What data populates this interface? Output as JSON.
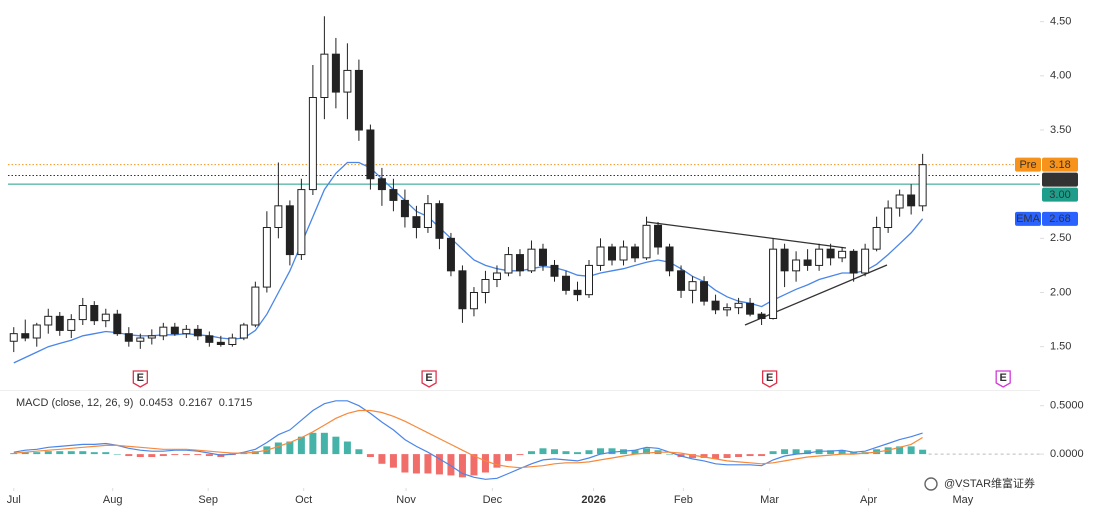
{
  "chart_data": {
    "type": "candlestick",
    "up_color": "#ffffff",
    "down_color": "#222222",
    "outline_color": "#222222",
    "ylim": [
      1.1,
      4.7
    ],
    "yticks": [
      {
        "value": 4.5,
        "label": "4.50"
      },
      {
        "value": 4,
        "label": "4.00"
      },
      {
        "value": 3.5,
        "label": "3.50"
      },
      {
        "value": 2.5,
        "label": "2.50"
      },
      {
        "value": 2,
        "label": "2.00"
      },
      {
        "value": 1.5,
        "label": "1.50"
      }
    ],
    "xlim": [
      0,
      89.7
    ],
    "xticks": [
      {
        "value": 0.5,
        "label": "Jul"
      },
      {
        "value": 9.1,
        "label": "Aug"
      },
      {
        "value": 17.4,
        "label": "Sep"
      },
      {
        "value": 25.7,
        "label": "Oct"
      },
      {
        "value": 34.6,
        "label": "Nov"
      },
      {
        "value": 42.1,
        "label": "Dec"
      },
      {
        "value": 50.9,
        "label": "2026"
      },
      {
        "value": 58.7,
        "label": "Feb"
      },
      {
        "value": 66.2,
        "label": "Mar"
      },
      {
        "value": 74.8,
        "label": "Apr"
      },
      {
        "value": 83.0,
        "label": "May"
      }
    ],
    "grid": false,
    "open": [
      1.55,
      1.62,
      1.58,
      1.7,
      1.78,
      1.65,
      1.75,
      1.88,
      1.74,
      1.8,
      1.62,
      1.55,
      1.58,
      1.6,
      1.68,
      1.62,
      1.66,
      1.6,
      1.54,
      1.52,
      1.58,
      1.7,
      2.05,
      2.6,
      2.8,
      2.35,
      2.95,
      3.8,
      4.2,
      3.85,
      4.05,
      3.5,
      3.05,
      2.95,
      2.85,
      2.7,
      2.6,
      2.82,
      2.5,
      2.2,
      1.85,
      2.0,
      2.12,
      2.18,
      2.35,
      2.2,
      2.4,
      2.25,
      2.15,
      2.02,
      1.98,
      2.25,
      2.42,
      2.3,
      2.42,
      2.32,
      2.62,
      2.42,
      2.2,
      2.02,
      2.1,
      1.92,
      1.84,
      1.86,
      1.9,
      1.8,
      1.76,
      2.4,
      2.2,
      2.3,
      2.25,
      2.4,
      2.32,
      2.38,
      2.18,
      2.4,
      2.6,
      2.78,
      2.9,
      2.8
    ],
    "high": [
      1.68,
      1.75,
      1.72,
      1.85,
      1.82,
      1.8,
      1.95,
      1.92,
      1.85,
      1.84,
      1.68,
      1.62,
      1.66,
      1.72,
      1.72,
      1.7,
      1.7,
      1.64,
      1.6,
      1.62,
      1.72,
      2.1,
      2.75,
      3.2,
      2.85,
      3.05,
      4.1,
      4.55,
      4.35,
      4.3,
      4.15,
      3.55,
      3.15,
      3.05,
      2.95,
      2.8,
      2.9,
      2.85,
      2.55,
      2.25,
      2.05,
      2.2,
      2.25,
      2.42,
      2.4,
      2.48,
      2.45,
      2.3,
      2.2,
      2.1,
      2.3,
      2.5,
      2.45,
      2.48,
      2.45,
      2.7,
      2.65,
      2.45,
      2.25,
      2.15,
      2.15,
      1.98,
      1.9,
      1.95,
      1.95,
      1.82,
      2.5,
      2.45,
      2.38,
      2.4,
      2.45,
      2.45,
      2.42,
      2.4,
      2.45,
      2.7,
      2.85,
      2.95,
      3.0,
      3.28
    ],
    "low": [
      1.45,
      1.55,
      1.5,
      1.62,
      1.6,
      1.58,
      1.7,
      1.7,
      1.68,
      1.6,
      1.5,
      1.48,
      1.52,
      1.56,
      1.6,
      1.58,
      1.56,
      1.5,
      1.5,
      1.5,
      1.56,
      1.68,
      2.0,
      2.5,
      2.25,
      2.3,
      2.9,
      3.6,
      3.7,
      3.6,
      3.4,
      2.95,
      2.8,
      2.75,
      2.6,
      2.5,
      2.55,
      2.4,
      2.15,
      1.72,
      1.78,
      1.9,
      2.05,
      2.15,
      2.15,
      2.18,
      2.2,
      2.1,
      1.98,
      1.92,
      1.95,
      2.2,
      2.25,
      2.25,
      2.28,
      2.3,
      2.35,
      2.15,
      1.95,
      1.9,
      1.88,
      1.8,
      1.78,
      1.8,
      1.78,
      1.7,
      1.75,
      2.05,
      2.1,
      2.2,
      2.2,
      2.25,
      2.28,
      2.1,
      2.15,
      2.38,
      2.55,
      2.7,
      2.72,
      2.75
    ],
    "close": [
      1.62,
      1.58,
      1.7,
      1.78,
      1.65,
      1.75,
      1.88,
      1.74,
      1.8,
      1.62,
      1.55,
      1.58,
      1.6,
      1.68,
      1.62,
      1.66,
      1.6,
      1.54,
      1.52,
      1.58,
      1.7,
      2.05,
      2.6,
      2.8,
      2.35,
      2.95,
      3.8,
      4.2,
      3.85,
      4.05,
      3.5,
      3.05,
      2.95,
      2.85,
      2.7,
      2.6,
      2.82,
      2.5,
      2.2,
      1.85,
      2.0,
      2.12,
      2.18,
      2.35,
      2.2,
      2.4,
      2.25,
      2.15,
      2.02,
      1.98,
      2.25,
      2.42,
      2.3,
      2.42,
      2.32,
      2.62,
      2.42,
      2.2,
      2.02,
      2.1,
      1.92,
      1.84,
      1.86,
      1.9,
      1.8,
      1.76,
      2.4,
      2.2,
      2.3,
      2.25,
      2.4,
      2.32,
      2.38,
      2.18,
      2.4,
      2.6,
      2.78,
      2.9,
      2.8,
      3.18
    ],
    "ema": {
      "name": "EMA",
      "color": "#4a86e8",
      "label_color": "#2962ff",
      "values": [
        1.35,
        1.4,
        1.45,
        1.5,
        1.53,
        1.56,
        1.6,
        1.62,
        1.64,
        1.63,
        1.61,
        1.6,
        1.6,
        1.61,
        1.61,
        1.62,
        1.61,
        1.6,
        1.58,
        1.57,
        1.58,
        1.65,
        1.8,
        2.0,
        2.2,
        2.45,
        2.7,
        2.95,
        3.1,
        3.2,
        3.2,
        3.15,
        3.05,
        2.95,
        2.85,
        2.75,
        2.7,
        2.6,
        2.5,
        2.4,
        2.3,
        2.25,
        2.22,
        2.2,
        2.2,
        2.22,
        2.24,
        2.23,
        2.2,
        2.16,
        2.15,
        2.18,
        2.2,
        2.22,
        2.25,
        2.28,
        2.3,
        2.28,
        2.22,
        2.15,
        2.1,
        2.02,
        1.96,
        1.92,
        1.9,
        1.87,
        1.93,
        1.98,
        2.03,
        2.07,
        2.12,
        2.15,
        2.18,
        2.18,
        2.2,
        2.26,
        2.35,
        2.45,
        2.55,
        2.68
      ]
    },
    "price_lines": [
      {
        "name": "Pre",
        "value": 3.18,
        "color": "#f7931a",
        "style": "dotted"
      },
      {
        "value": 3.08,
        "color": "#333333",
        "style": "dotted"
      },
      {
        "value": 3,
        "value_label": "3.00",
        "color": "#1e9e8a",
        "style": "solid"
      }
    ],
    "events": [
      "E",
      "E",
      "E",
      "E"
    ],
    "event_colors": [
      "#e0314b",
      "#e0314b",
      "#e0314b",
      "#d03ad8"
    ],
    "macd": {
      "title": "MACD (close, 12, 26, 9)",
      "ylim": [
        -0.35,
        0.6
      ],
      "yticks": [
        {
          "value": 0.5,
          "label": "0.5000"
        },
        {
          "value": 0,
          "label": "0.0000"
        }
      ],
      "histogram": {
        "color_up": "#26a69a",
        "color_down": "#ef5350",
        "legend_color": "#7fcfc4",
        "values": [
          0.01,
          0.02,
          0.02,
          0.03,
          0.03,
          0.03,
          0.03,
          0.02,
          0.02,
          0,
          -0.02,
          -0.03,
          -0.03,
          -0.02,
          -0.01,
          -0.01,
          -0.01,
          -0.02,
          -0.03,
          -0.01,
          0.01,
          0.03,
          0.08,
          0.12,
          0.13,
          0.18,
          0.22,
          0.22,
          0.18,
          0.13,
          0.05,
          -0.03,
          -0.1,
          -0.14,
          -0.19,
          -0.2,
          -0.2,
          -0.21,
          -0.22,
          -0.24,
          -0.22,
          -0.19,
          -0.14,
          -0.07,
          -0.01,
          0.03,
          0.06,
          0.05,
          0.03,
          0.02,
          0.04,
          0.06,
          0.06,
          0.05,
          0.04,
          0.06,
          0.04,
          0,
          -0.03,
          -0.04,
          -0.04,
          -0.05,
          -0.04,
          -0.03,
          -0.02,
          -0.02,
          0.03,
          0.05,
          0.05,
          0.04,
          0.05,
          0.04,
          0.04,
          0.02,
          0.02,
          0.05,
          0.07,
          0.08,
          0.08,
          0.0453
        ]
      },
      "macd_line": {
        "color": "#4a86e8",
        "values": [
          0.02,
          0.04,
          0.05,
          0.07,
          0.08,
          0.09,
          0.1,
          0.1,
          0.11,
          0.09,
          0.06,
          0.04,
          0.03,
          0.03,
          0.04,
          0.04,
          0.03,
          0.01,
          -0.01,
          0,
          0.02,
          0.05,
          0.12,
          0.2,
          0.25,
          0.35,
          0.45,
          0.52,
          0.55,
          0.55,
          0.5,
          0.42,
          0.33,
          0.25,
          0.15,
          0.08,
          0.02,
          -0.05,
          -0.12,
          -0.2,
          -0.24,
          -0.26,
          -0.25,
          -0.2,
          -0.15,
          -0.1,
          -0.06,
          -0.05,
          -0.06,
          -0.07,
          -0.04,
          0,
          0.02,
          0.03,
          0.04,
          0.07,
          0.06,
          0.02,
          -0.02,
          -0.05,
          -0.07,
          -0.1,
          -0.11,
          -0.11,
          -0.11,
          -0.12,
          -0.06,
          -0.02,
          0,
          0.01,
          0.03,
          0.03,
          0.04,
          0.02,
          0.03,
          0.07,
          0.11,
          0.15,
          0.18,
          0.2167
        ]
      },
      "signal_line": {
        "color": "#f7893b",
        "values": [
          0.01,
          0.02,
          0.03,
          0.04,
          0.05,
          0.06,
          0.07,
          0.08,
          0.09,
          0.09,
          0.08,
          0.07,
          0.06,
          0.05,
          0.05,
          0.05,
          0.04,
          0.03,
          0.02,
          0.01,
          0.01,
          0.02,
          0.04,
          0.08,
          0.12,
          0.17,
          0.23,
          0.3,
          0.37,
          0.42,
          0.45,
          0.45,
          0.43,
          0.39,
          0.34,
          0.28,
          0.22,
          0.16,
          0.1,
          0.04,
          -0.02,
          -0.07,
          -0.11,
          -0.13,
          -0.14,
          -0.13,
          -0.12,
          -0.1,
          -0.09,
          -0.09,
          -0.08,
          -0.06,
          -0.04,
          -0.02,
          0,
          0.01,
          0.02,
          0.02,
          0.01,
          -0.01,
          -0.03,
          -0.05,
          -0.07,
          -0.08,
          -0.09,
          -0.1,
          -0.09,
          -0.07,
          -0.05,
          -0.03,
          -0.02,
          -0.01,
          0,
          0,
          0.01,
          0.02,
          0.04,
          0.07,
          0.1,
          0.1715
        ]
      }
    },
    "watermark": "@VSTAR维富证券"
  }
}
